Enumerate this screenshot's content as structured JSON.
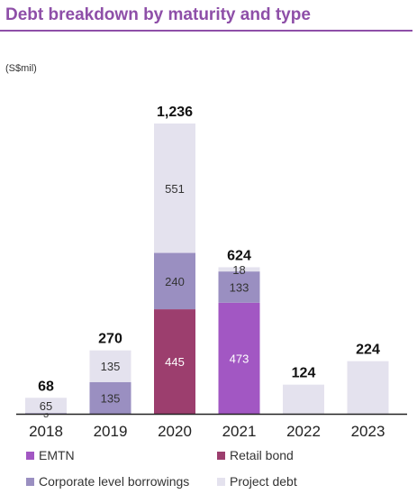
{
  "title": "Debt breakdown by maturity and type",
  "unit_label": "(S$mil)",
  "colors": {
    "emtn": "#a257c3",
    "retail_bond": "#9c3e6e",
    "corporate_level_borrowings": "#9a8fc1",
    "project_debt": "#e4e2ee",
    "title": "#8e4fa8",
    "axis": "#222222"
  },
  "chart_data": {
    "type": "bar",
    "stacked": true,
    "categories": [
      "2018",
      "2019",
      "2020",
      "2021",
      "2022",
      "2023"
    ],
    "series": [
      {
        "name": "EMTN",
        "values": [
          0,
          0,
          0,
          473,
          0,
          0
        ]
      },
      {
        "name": "Retail bond",
        "values": [
          0,
          0,
          445,
          0,
          0,
          0
        ]
      },
      {
        "name": "Corporate level borrowings",
        "values": [
          3,
          135,
          240,
          133,
          0,
          0
        ]
      },
      {
        "name": "Project debt",
        "values": [
          65,
          135,
          551,
          18,
          124,
          224
        ]
      }
    ],
    "totals": [
      "68",
      "270",
      "1,236",
      "624",
      "124",
      "224"
    ],
    "segment_labels": [
      [
        null,
        null,
        "3",
        "65"
      ],
      [
        null,
        null,
        "135",
        "135"
      ],
      [
        null,
        "445",
        "240",
        "551"
      ],
      [
        "473",
        null,
        "133",
        "18"
      ],
      [
        null,
        null,
        null,
        null
      ],
      [
        null,
        null,
        null,
        null
      ]
    ],
    "ylim": [
      0,
      1236
    ],
    "grid": false,
    "legend_position": "bottom"
  }
}
